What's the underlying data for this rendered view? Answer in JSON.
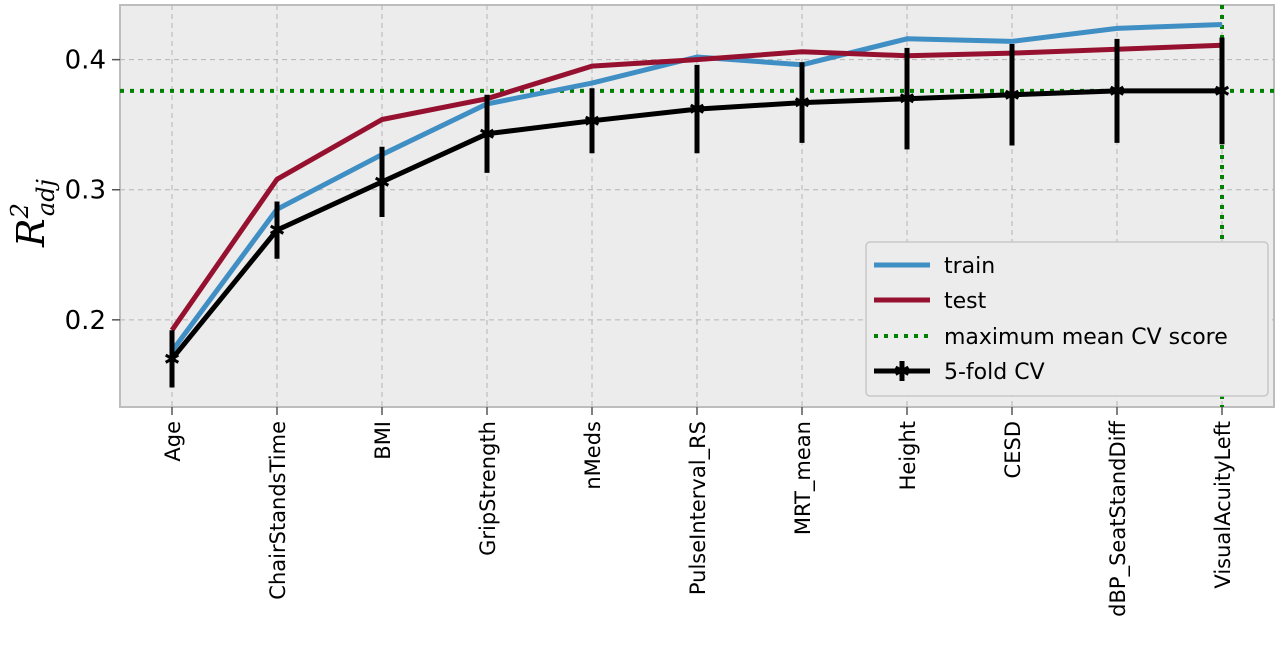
{
  "chart_data": {
    "type": "line",
    "categories": [
      "Age",
      "ChairStandsTime",
      "BMI",
      "GripStrength",
      "nMeds",
      "PulseInterval_RS",
      "MRT_mean",
      "Height",
      "CESD",
      "dBP_SeatStandDiff",
      "VisualAcuityLeft"
    ],
    "xlabel": "",
    "ylabel": "R",
    "ylabel_superscript": "2",
    "ylabel_subscript": "adj",
    "ylim": [
      0.133,
      0.442
    ],
    "yticks": [
      "0.2",
      "0.3",
      "0.4"
    ],
    "grid": true,
    "legend_position": "lower-right",
    "series": [
      {
        "name": "train",
        "color": "#3f8fc4",
        "values": [
          0.176,
          0.285,
          0.327,
          0.366,
          0.382,
          0.402,
          0.396,
          0.416,
          0.414,
          0.424,
          0.427
        ]
      },
      {
        "name": "test",
        "color": "#96112f",
        "values": [
          0.192,
          0.308,
          0.354,
          0.37,
          0.395,
          0.4,
          0.406,
          0.403,
          0.405,
          0.408,
          0.411
        ]
      },
      {
        "name": "5-fold CV",
        "color": "#000000",
        "values": [
          0.17,
          0.269,
          0.306,
          0.343,
          0.353,
          0.362,
          0.367,
          0.37,
          0.373,
          0.376,
          0.376
        ],
        "error": [
          0.022,
          0.022,
          0.027,
          0.03,
          0.025,
          0.034,
          0.031,
          0.039,
          0.039,
          0.04,
          0.041
        ]
      }
    ],
    "reference_lines": [
      {
        "name": "maximum mean CV score",
        "color": "#008000",
        "orientation": "horizontal",
        "value": 0.376
      },
      {
        "name": "maximum mean CV score",
        "color": "#008000",
        "orientation": "vertical",
        "category": "VisualAcuityLeft"
      }
    ],
    "legend": [
      "train",
      "test",
      "maximum mean CV score",
      "5-fold CV"
    ]
  }
}
